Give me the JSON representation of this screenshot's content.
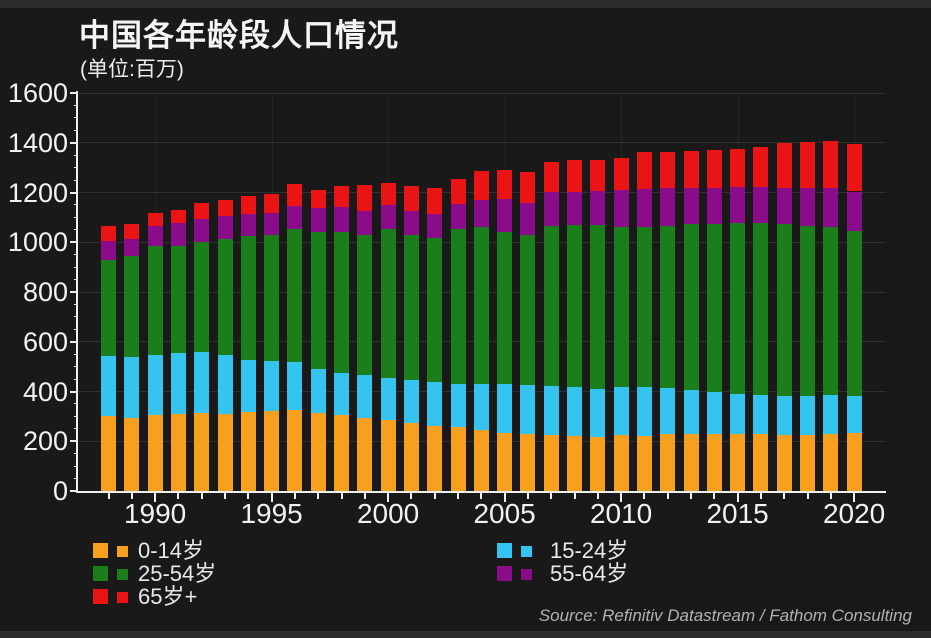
{
  "title": "中国各年龄段人口情况",
  "subtitle": "(单位:百万)",
  "source": "Source: Refinitiv Datastream / Fathom Consulting",
  "colors": {
    "background": "#191919",
    "edge_strip": "#2d2d2d",
    "text": "#f2f2f2",
    "axis": "#f0f0f0",
    "source_text": "#b2b2b2"
  },
  "chart_data": {
    "type": "bar",
    "stacked": true,
    "title": "中国各年龄段人口情况",
    "unit_label": "(单位:百万)",
    "ylim": [
      0,
      1600
    ],
    "ytick_step": 200,
    "y_minor_tick_step": 50,
    "grid": true,
    "legend_position": "bottom",
    "x": [
      1988,
      1989,
      1990,
      1991,
      1992,
      1993,
      1994,
      1995,
      1996,
      1997,
      1998,
      1999,
      2000,
      2001,
      2002,
      2003,
      2004,
      2005,
      2006,
      2007,
      2008,
      2009,
      2010,
      2011,
      2012,
      2013,
      2014,
      2015,
      2016,
      2017,
      2018,
      2019,
      2020
    ],
    "xticks": [
      1990,
      1995,
      2000,
      2005,
      2010,
      2015,
      2020
    ],
    "series": [
      {
        "name": "0-14岁",
        "color": "#f7a01e",
        "values": [
          300,
          295,
          306,
          310,
          313,
          310,
          317,
          320,
          324,
          315,
          304,
          294,
          284,
          273,
          263,
          256,
          247,
          232,
          230,
          226,
          223,
          219,
          225,
          220,
          228,
          230,
          229,
          228,
          229,
          227,
          226,
          228,
          232
        ]
      },
      {
        "name": "15-24岁",
        "color": "#35c4f0",
        "values": [
          243,
          245,
          241,
          246,
          247,
          237,
          210,
          204,
          196,
          174,
          171,
          172,
          172,
          173,
          176,
          176,
          185,
          198,
          198,
          198,
          194,
          191,
          193,
          200,
          187,
          176,
          169,
          163,
          158,
          155,
          157,
          157,
          150
        ]
      },
      {
        "name": "25-54岁",
        "color": "#1a7f1a",
        "values": [
          387,
          404,
          436,
          429,
          439,
          465,
          499,
          505,
          533,
          551,
          567,
          564,
          597,
          584,
          580,
          621,
          628,
          610,
          601,
          643,
          652,
          659,
          642,
          642,
          652,
          667,
          675,
          686,
          690,
          691,
          684,
          675,
          662
        ]
      },
      {
        "name": "55-64岁",
        "color": "#8a0c8a",
        "values": [
          75,
          68,
          81,
          92,
          95,
          92,
          88,
          89,
          94,
          97,
          99,
          97,
          95,
          97,
          95,
          101,
          110,
          132,
          129,
          135,
          132,
          139,
          152,
          153,
          150,
          146,
          147,
          145,
          145,
          147,
          152,
          157,
          160
        ]
      },
      {
        "name": "65岁+",
        "color": "#ea1414",
        "values": [
          60,
          61,
          54,
          54,
          64,
          66,
          71,
          77,
          88,
          75,
          85,
          102,
          92,
          99,
          104,
          102,
          115,
          118,
          125,
          121,
          129,
          124,
          125,
          146,
          147,
          147,
          150,
          152,
          162,
          181,
          185,
          190,
          190
        ]
      }
    ],
    "legend_columns": [
      [
        0,
        2,
        4
      ],
      [
        1,
        3
      ]
    ]
  }
}
